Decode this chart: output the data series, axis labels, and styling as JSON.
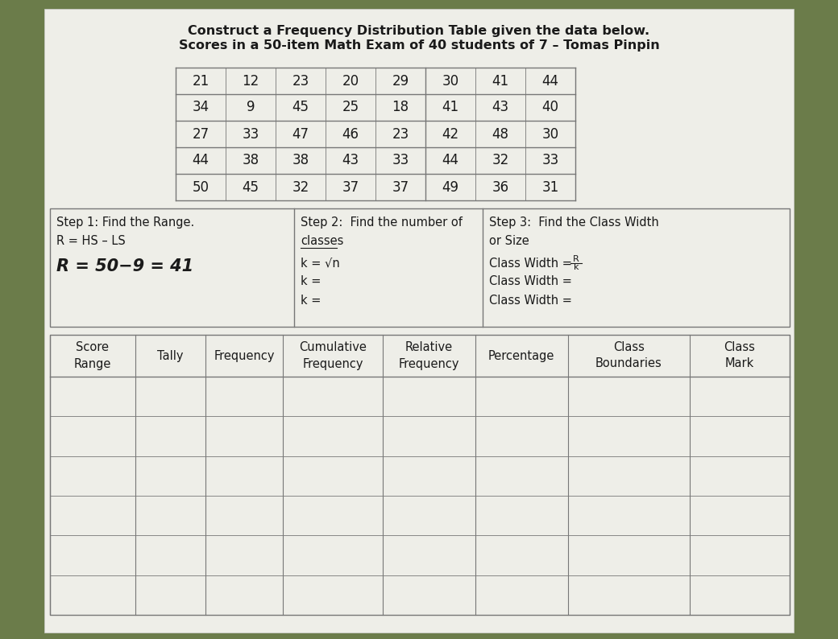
{
  "title_line1": "Construct a Frequency Distribution Table given the data below.",
  "title_line2": "Scores in a 50-item Math Exam of 40 students of 7 – Tomas Pinpin",
  "data_table": [
    [
      21,
      12,
      23,
      20,
      29,
      30,
      41,
      44
    ],
    [
      34,
      9,
      45,
      25,
      18,
      41,
      43,
      40
    ],
    [
      27,
      33,
      47,
      46,
      23,
      42,
      48,
      30
    ],
    [
      44,
      38,
      38,
      43,
      33,
      44,
      32,
      33
    ],
    [
      50,
      45,
      32,
      37,
      37,
      49,
      36,
      31
    ]
  ],
  "freq_table_headers_line1": [
    "Score",
    "Tally",
    "Frequency",
    "Cumulative",
    "Relative",
    "Percentage",
    "Class",
    "Class"
  ],
  "freq_table_headers_line2": [
    "Range",
    "",
    "",
    "Frequency",
    "Frequency",
    "",
    "Boundaries",
    "Mark"
  ],
  "freq_table_rows": 6,
  "bg_color": "#6b7c4a",
  "paper_color": "#eeeee8",
  "line_color": "#777777",
  "text_color": "#1a1a1a",
  "font_size_title": 11.5,
  "font_size_data": 12,
  "font_size_step": 10.5,
  "font_size_freq": 10.5,
  "font_size_handwritten": 15
}
